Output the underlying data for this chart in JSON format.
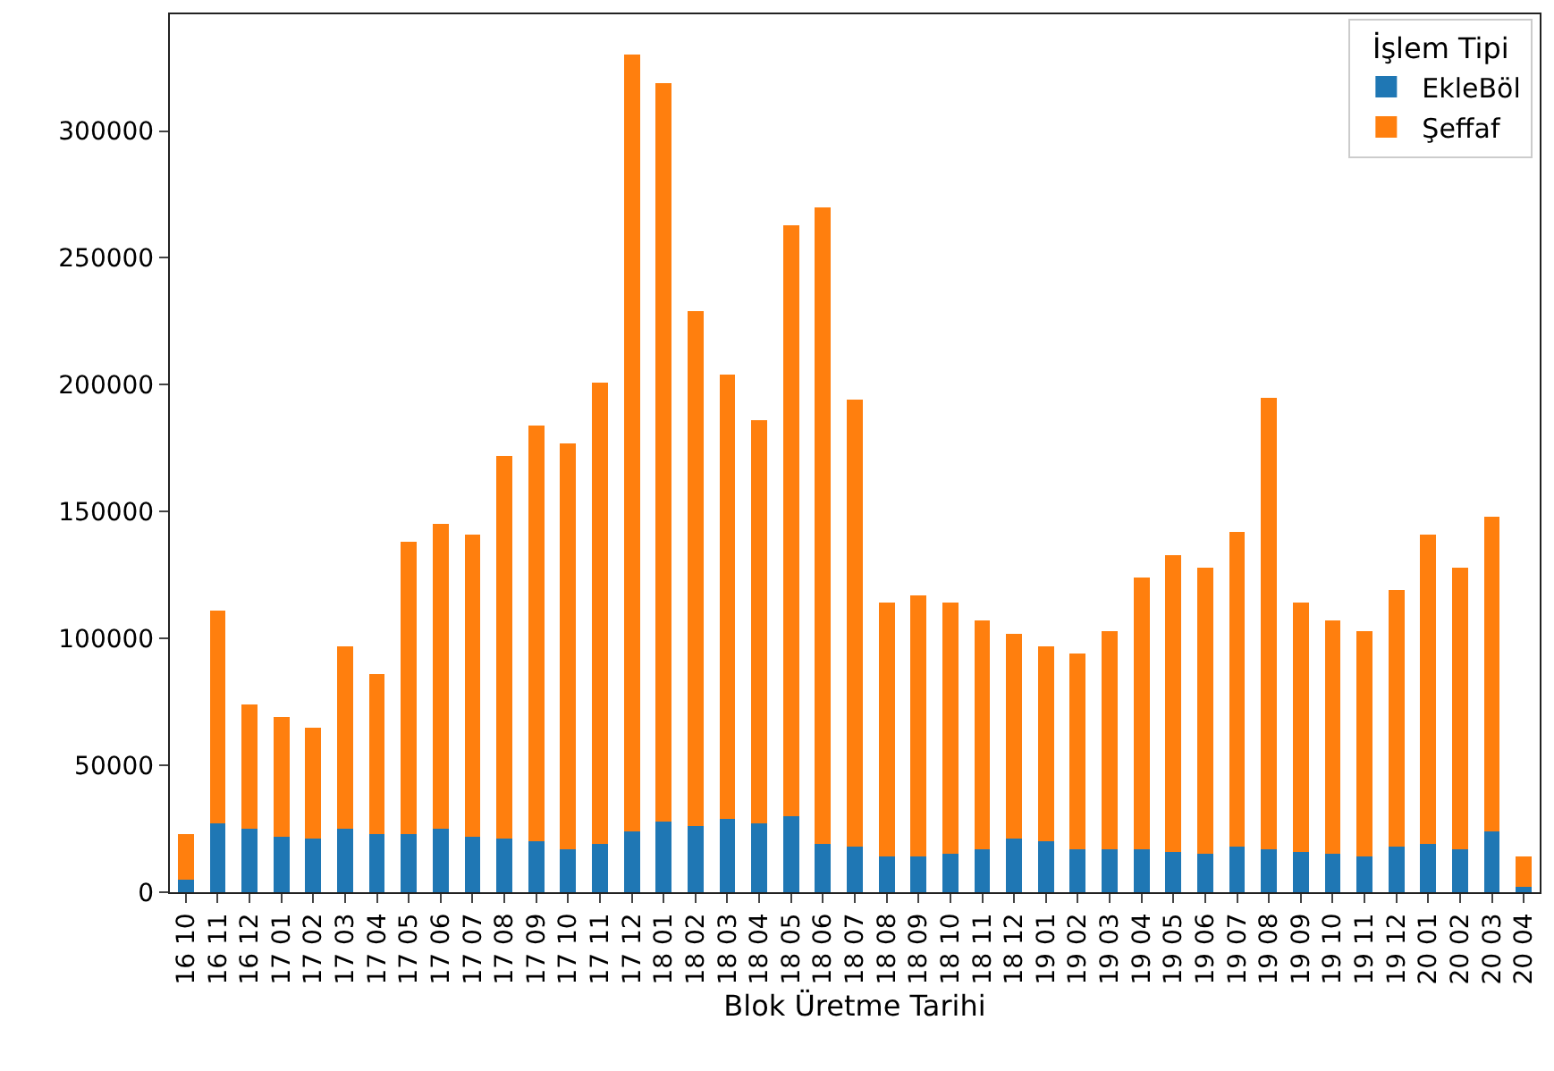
{
  "chart_data": {
    "type": "bar",
    "stacked": true,
    "xlabel": "Blok Üretme Tarihi",
    "legend_title": "İşlem Tipi",
    "legend": "top right",
    "grid": false,
    "categories": [
      "16 10",
      "16 11",
      "16 12",
      "17 01",
      "17 02",
      "17 03",
      "17 04",
      "17 05",
      "17 06",
      "17 07",
      "17 08",
      "17 09",
      "17 10",
      "17 11",
      "17 12",
      "18 01",
      "18 02",
      "18 03",
      "18 04",
      "18 05",
      "18 06",
      "18 07",
      "18 08",
      "18 09",
      "18 10",
      "18 11",
      "18 12",
      "19 01",
      "19 02",
      "19 03",
      "19 04",
      "19 05",
      "19 06",
      "19 07",
      "19 08",
      "19 09",
      "19 10",
      "19 11",
      "19 12",
      "20 01",
      "20 02",
      "20 03",
      "20 04"
    ],
    "series": [
      {
        "name": "EkleBöl",
        "color": "#1f77b4",
        "values": [
          5000,
          27000,
          25000,
          22000,
          21000,
          25000,
          23000,
          23000,
          25000,
          22000,
          21000,
          20000,
          17000,
          19000,
          24000,
          28000,
          26000,
          29000,
          27000,
          30000,
          19000,
          18000,
          14000,
          14000,
          15000,
          17000,
          21000,
          20000,
          17000,
          17000,
          17000,
          16000,
          15000,
          18000,
          17000,
          16000,
          15000,
          14000,
          18000,
          19000,
          17000,
          24000,
          2000
        ]
      },
      {
        "name": "Şeffaf",
        "color": "#ff7f0e",
        "values": [
          18000,
          84000,
          49000,
          47000,
          44000,
          72000,
          63000,
          115000,
          120000,
          119000,
          151000,
          164000,
          160000,
          182000,
          306000,
          291000,
          203000,
          175000,
          159000,
          233000,
          251000,
          176000,
          100000,
          103000,
          99000,
          90000,
          81000,
          77000,
          77000,
          86000,
          107000,
          117000,
          113000,
          124000,
          178000,
          98000,
          92000,
          89000,
          101000,
          122000,
          111000,
          124000,
          12000
        ]
      }
    ],
    "ylim": [
      0,
      346000
    ],
    "yticks": [
      0,
      50000,
      100000,
      150000,
      200000,
      250000,
      300000
    ]
  }
}
